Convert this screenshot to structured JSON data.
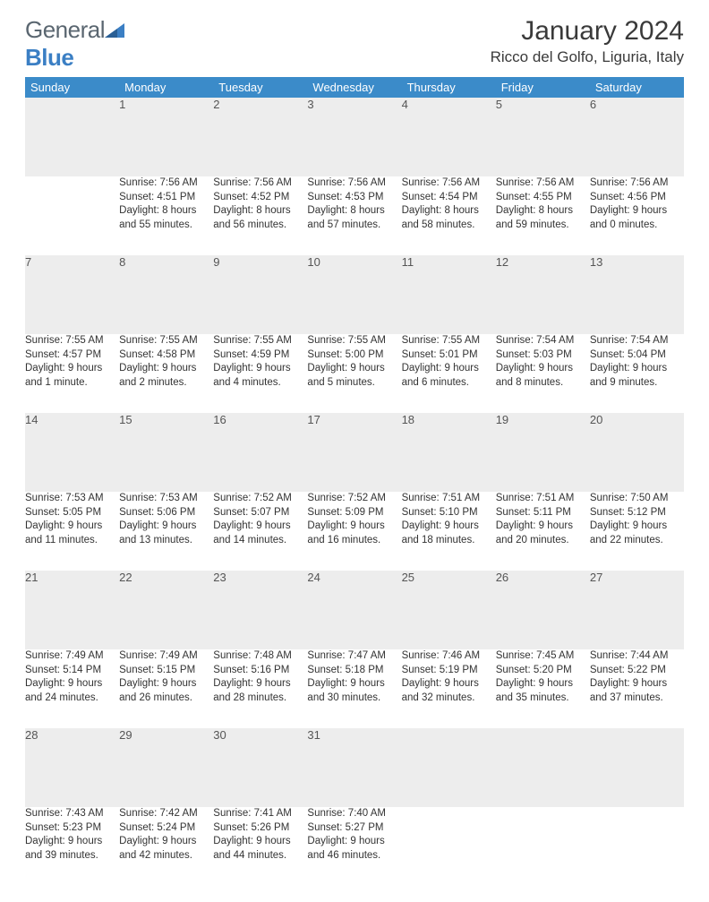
{
  "logo": {
    "text1": "General",
    "text2": "Blue"
  },
  "title": "January 2024",
  "location": "Ricco del Golfo, Liguria, Italy",
  "colors": {
    "header_bg": "#3b8bc9",
    "header_text": "#ffffff",
    "daynum_bg": "#ededed",
    "rule": "#3b6fa0",
    "logo_gray": "#5a6670",
    "logo_blue": "#3b7fc4"
  },
  "dayHeaders": [
    "Sunday",
    "Monday",
    "Tuesday",
    "Wednesday",
    "Thursday",
    "Friday",
    "Saturday"
  ],
  "weeks": [
    {
      "nums": [
        "",
        "1",
        "2",
        "3",
        "4",
        "5",
        "6"
      ],
      "cells": [
        "",
        "Sunrise: 7:56 AM\nSunset: 4:51 PM\nDaylight: 8 hours and 55 minutes.",
        "Sunrise: 7:56 AM\nSunset: 4:52 PM\nDaylight: 8 hours and 56 minutes.",
        "Sunrise: 7:56 AM\nSunset: 4:53 PM\nDaylight: 8 hours and 57 minutes.",
        "Sunrise: 7:56 AM\nSunset: 4:54 PM\nDaylight: 8 hours and 58 minutes.",
        "Sunrise: 7:56 AM\nSunset: 4:55 PM\nDaylight: 8 hours and 59 minutes.",
        "Sunrise: 7:56 AM\nSunset: 4:56 PM\nDaylight: 9 hours and 0 minutes."
      ]
    },
    {
      "nums": [
        "7",
        "8",
        "9",
        "10",
        "11",
        "12",
        "13"
      ],
      "cells": [
        "Sunrise: 7:55 AM\nSunset: 4:57 PM\nDaylight: 9 hours and 1 minute.",
        "Sunrise: 7:55 AM\nSunset: 4:58 PM\nDaylight: 9 hours and 2 minutes.",
        "Sunrise: 7:55 AM\nSunset: 4:59 PM\nDaylight: 9 hours and 4 minutes.",
        "Sunrise: 7:55 AM\nSunset: 5:00 PM\nDaylight: 9 hours and 5 minutes.",
        "Sunrise: 7:55 AM\nSunset: 5:01 PM\nDaylight: 9 hours and 6 minutes.",
        "Sunrise: 7:54 AM\nSunset: 5:03 PM\nDaylight: 9 hours and 8 minutes.",
        "Sunrise: 7:54 AM\nSunset: 5:04 PM\nDaylight: 9 hours and 9 minutes."
      ]
    },
    {
      "nums": [
        "14",
        "15",
        "16",
        "17",
        "18",
        "19",
        "20"
      ],
      "cells": [
        "Sunrise: 7:53 AM\nSunset: 5:05 PM\nDaylight: 9 hours and 11 minutes.",
        "Sunrise: 7:53 AM\nSunset: 5:06 PM\nDaylight: 9 hours and 13 minutes.",
        "Sunrise: 7:52 AM\nSunset: 5:07 PM\nDaylight: 9 hours and 14 minutes.",
        "Sunrise: 7:52 AM\nSunset: 5:09 PM\nDaylight: 9 hours and 16 minutes.",
        "Sunrise: 7:51 AM\nSunset: 5:10 PM\nDaylight: 9 hours and 18 minutes.",
        "Sunrise: 7:51 AM\nSunset: 5:11 PM\nDaylight: 9 hours and 20 minutes.",
        "Sunrise: 7:50 AM\nSunset: 5:12 PM\nDaylight: 9 hours and 22 minutes."
      ]
    },
    {
      "nums": [
        "21",
        "22",
        "23",
        "24",
        "25",
        "26",
        "27"
      ],
      "cells": [
        "Sunrise: 7:49 AM\nSunset: 5:14 PM\nDaylight: 9 hours and 24 minutes.",
        "Sunrise: 7:49 AM\nSunset: 5:15 PM\nDaylight: 9 hours and 26 minutes.",
        "Sunrise: 7:48 AM\nSunset: 5:16 PM\nDaylight: 9 hours and 28 minutes.",
        "Sunrise: 7:47 AM\nSunset: 5:18 PM\nDaylight: 9 hours and 30 minutes.",
        "Sunrise: 7:46 AM\nSunset: 5:19 PM\nDaylight: 9 hours and 32 minutes.",
        "Sunrise: 7:45 AM\nSunset: 5:20 PM\nDaylight: 9 hours and 35 minutes.",
        "Sunrise: 7:44 AM\nSunset: 5:22 PM\nDaylight: 9 hours and 37 minutes."
      ]
    },
    {
      "nums": [
        "28",
        "29",
        "30",
        "31",
        "",
        "",
        ""
      ],
      "cells": [
        "Sunrise: 7:43 AM\nSunset: 5:23 PM\nDaylight: 9 hours and 39 minutes.",
        "Sunrise: 7:42 AM\nSunset: 5:24 PM\nDaylight: 9 hours and 42 minutes.",
        "Sunrise: 7:41 AM\nSunset: 5:26 PM\nDaylight: 9 hours and 44 minutes.",
        "Sunrise: 7:40 AM\nSunset: 5:27 PM\nDaylight: 9 hours and 46 minutes.",
        "",
        "",
        ""
      ]
    }
  ]
}
